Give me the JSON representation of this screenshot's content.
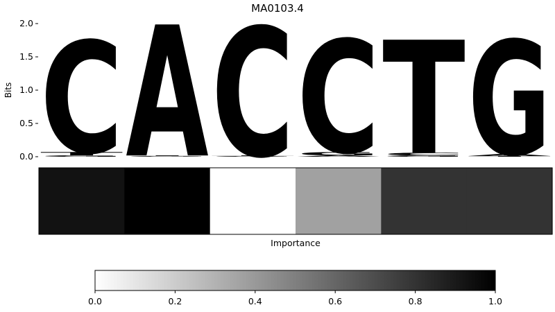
{
  "chart_data": [
    {
      "type": "sequence-logo",
      "title": "MA0103.4",
      "ylabel": "Bits",
      "ylim": [
        0,
        2.0
      ],
      "yticks": [
        "0.0",
        "0.5",
        "1.0",
        "1.5",
        "2.0"
      ],
      "colors": {
        "A": "#4da64d",
        "C": "#4d4dff",
        "G": "#ffbf4d",
        "T": "#ff4d4d"
      },
      "positions": [
        {
          "letters": [
            {
              "base": "G",
              "bits": 0.02
            },
            {
              "base": "T",
              "bits": 0.05
            },
            {
              "base": "C",
              "bits": 1.68
            }
          ]
        },
        {
          "letters": [
            {
              "base": "G",
              "bits": 0.01
            },
            {
              "base": "T",
              "bits": 0.01
            },
            {
              "base": "A",
              "bits": 1.97
            }
          ]
        },
        {
          "letters": [
            {
              "base": "G",
              "bits": 0.01
            },
            {
              "base": "T",
              "bits": 0.01
            },
            {
              "base": "C",
              "bits": 1.94
            }
          ]
        },
        {
          "letters": [
            {
              "base": "A",
              "bits": 0.02
            },
            {
              "base": "G",
              "bits": 0.05
            },
            {
              "base": "C",
              "bits": 1.7
            }
          ]
        },
        {
          "letters": [
            {
              "base": "G",
              "bits": 0.02
            },
            {
              "base": "C",
              "bits": 0.04
            },
            {
              "base": "T",
              "bits": 1.7
            }
          ]
        },
        {
          "letters": [
            {
              "base": "T",
              "bits": 0.01
            },
            {
              "base": "A",
              "bits": 0.03
            },
            {
              "base": "G",
              "bits": 1.72
            }
          ]
        }
      ]
    },
    {
      "type": "heatmap",
      "xlabel": "Importance",
      "values": [
        0.93,
        1.0,
        0.0,
        0.37,
        0.8,
        0.8
      ],
      "cmap": "greys"
    },
    {
      "type": "colorbar",
      "range": [
        0,
        1
      ],
      "ticks": [
        "0.0",
        "0.2",
        "0.4",
        "0.6",
        "0.8",
        "1.0"
      ]
    }
  ]
}
